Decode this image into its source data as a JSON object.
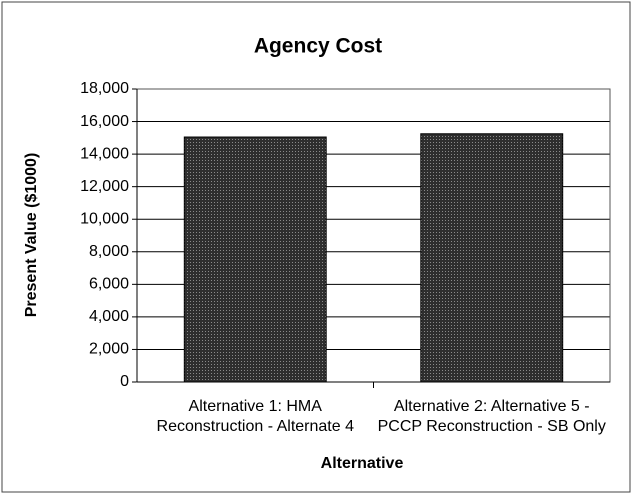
{
  "chart_data": {
    "type": "bar",
    "title": "Agency Cost",
    "x_label": "Alternative",
    "y_label": "Present Value ($1000)",
    "categories": [
      "Alternative 1: HMA Reconstruction - Alternate 4",
      "Alternative 2: Alternative 5 - PCCP Reconstruction - SB Only"
    ],
    "values": [
      15050,
      15250
    ],
    "color": "#3a3a3a",
    "ylim": [
      0,
      18000
    ],
    "yticks": [
      0,
      {
        "value": 2000,
        "label": "2,000"
      },
      {
        "value": 4000,
        "label": "4,000"
      },
      {
        "value": 6000,
        "label": "6,000"
      },
      {
        "value": 8000,
        "label": "8,000"
      },
      {
        "value": 10000,
        "label": "10,000"
      },
      {
        "value": 12000,
        "label": "12,000"
      },
      {
        "value": 14000,
        "label": "14,000"
      },
      {
        "value": 16000,
        "label": "16,000"
      },
      {
        "value": 18000,
        "label": "18,000"
      }
    ],
    "grid": true
  }
}
